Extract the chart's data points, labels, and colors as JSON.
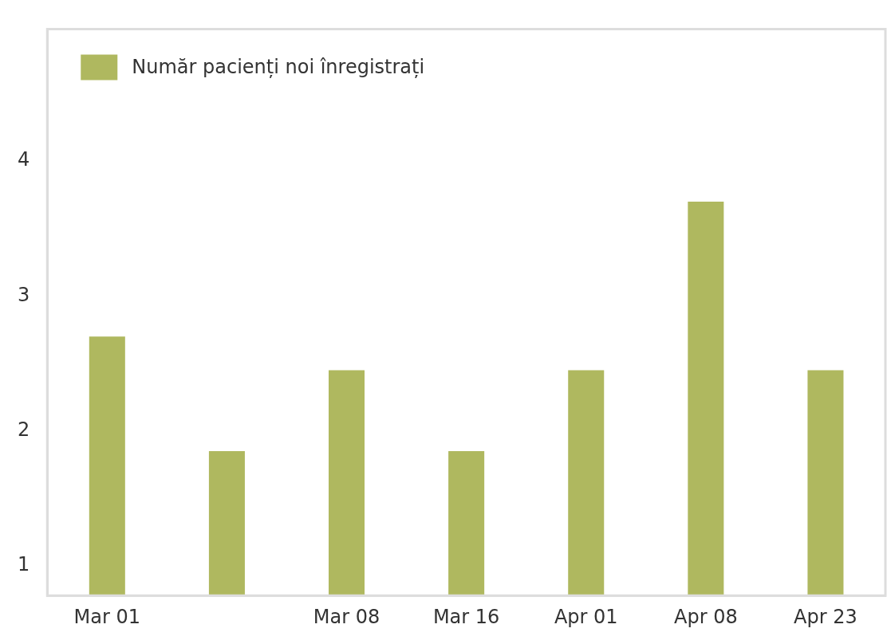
{
  "chart_data": {
    "type": "bar",
    "categories": [
      "Mar 01",
      null,
      "Mar 08",
      "Mar 16",
      "Apr 01",
      "Apr 08",
      "Apr 23"
    ],
    "series": [
      {
        "name": "Număr pacienți noi înregistrați",
        "color": "#afb85f",
        "values": [
          2.7,
          1.85,
          2.45,
          1.85,
          2.45,
          3.7,
          2.45
        ]
      }
    ],
    "ylim": [
      0.78,
      4.98
    ],
    "yticks": [
      1,
      2,
      3,
      4
    ],
    "grid": false,
    "legend": "top left"
  }
}
